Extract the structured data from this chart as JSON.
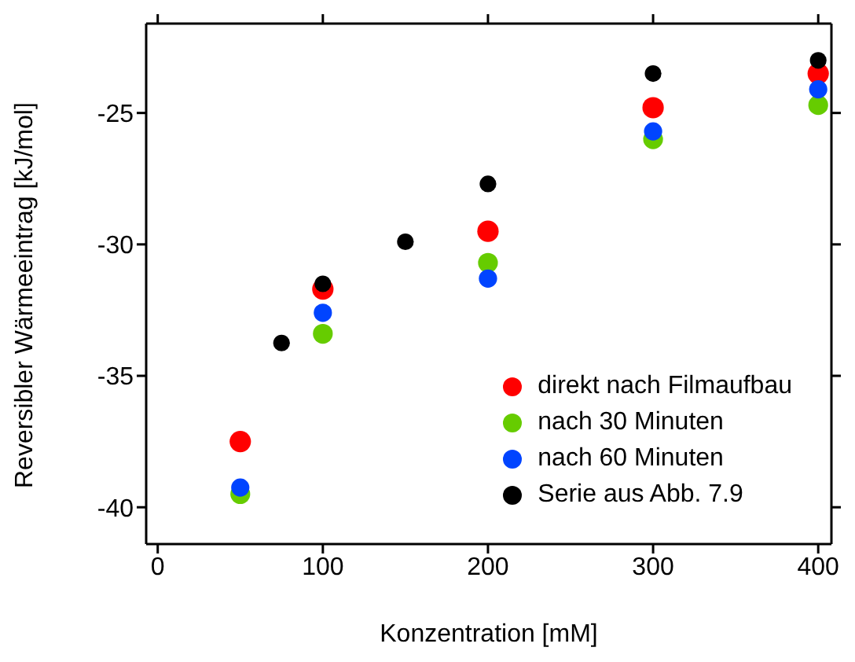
{
  "chart_data": {
    "type": "scatter",
    "xlabel": "Konzentration [mM]",
    "ylabel": "Reversibler Wärmeeintrag [kJ/mol]",
    "xlim": [
      -7,
      408
    ],
    "ylim": [
      -41.4,
      -21.6
    ],
    "xticks": [
      0,
      100,
      200,
      300,
      400
    ],
    "yticks": [
      -40,
      -35,
      -30,
      -25
    ],
    "marker": "circle",
    "legend": "bottom right",
    "series": [
      {
        "name": "direkt nach Filmaufbau",
        "color": "#ff0000",
        "x": [
          50,
          100,
          200,
          300,
          400
        ],
        "values": [
          -37.5,
          -31.7,
          -29.5,
          -24.8,
          -23.5
        ]
      },
      {
        "name": "nach 30 Minuten",
        "color": "#66cc00",
        "x": [
          50,
          100,
          200,
          300,
          400
        ],
        "values": [
          -39.5,
          -33.4,
          -30.7,
          -26.0,
          -24.7
        ]
      },
      {
        "name": "nach 60 Minuten",
        "color": "#0044ff",
        "x": [
          50,
          100,
          200,
          300,
          400
        ],
        "values": [
          -39.25,
          -32.6,
          -31.3,
          -25.7,
          -24.1
        ]
      },
      {
        "name": "Serie aus Abb. 7.9",
        "color": "#000000",
        "x": [
          75,
          100,
          150,
          200,
          300,
          400
        ],
        "values": [
          -33.75,
          -31.5,
          -29.9,
          -27.7,
          -23.5,
          -23.0
        ]
      }
    ]
  }
}
